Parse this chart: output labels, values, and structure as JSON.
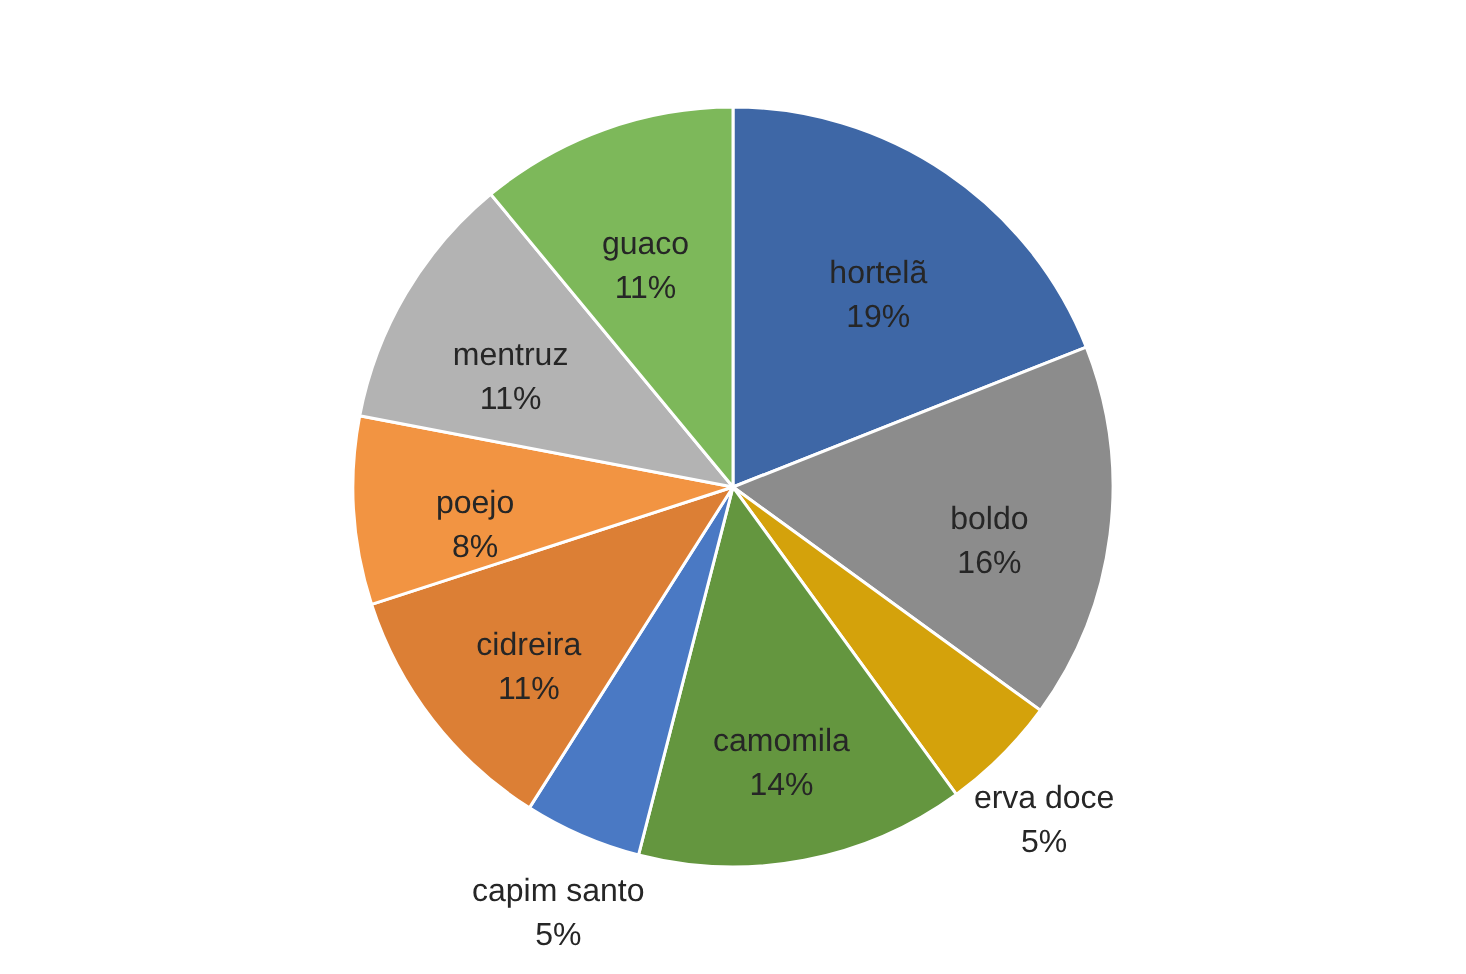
{
  "chart_data": {
    "type": "pie",
    "categories": [
      "hortelã",
      "boldo",
      "erva doce",
      "camomila",
      "capim santo",
      "cidreira",
      "poejo",
      "mentruz",
      "guaco"
    ],
    "values": [
      19,
      16,
      5,
      14,
      5,
      11,
      8,
      11,
      11
    ],
    "colors": [
      "#3e67a6",
      "#8c8c8c",
      "#d4a20b",
      "#64963f",
      "#4a79c4",
      "#dc7f35",
      "#f29442",
      "#b3b3b3",
      "#7db85a"
    ],
    "value_labels": [
      "19%",
      "16%",
      "5%",
      "14%",
      "5%",
      "11%",
      "8%",
      "11%",
      "11%"
    ]
  }
}
